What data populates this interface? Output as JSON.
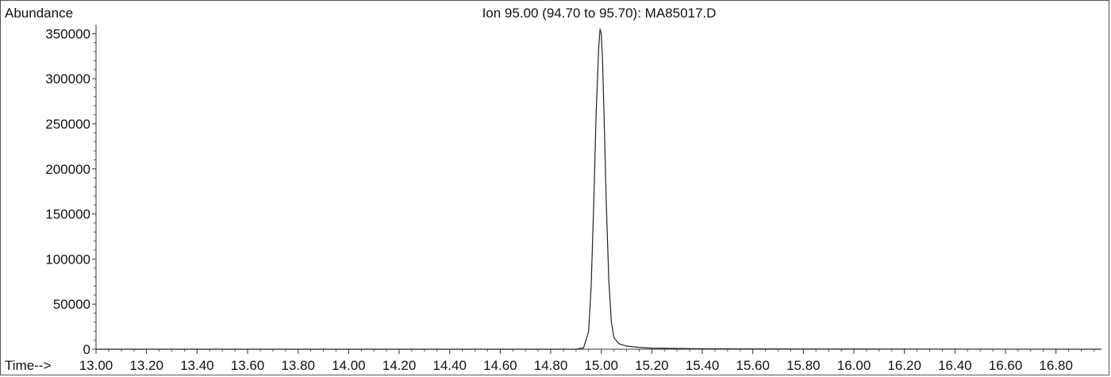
{
  "chart_data": {
    "type": "line",
    "title": "Ion  95.00 (94.70 to 95.70): MA85017.D",
    "ylabel": "Abundance",
    "xlabel_prefix": "Time-->",
    "xlim": [
      13.0,
      16.98
    ],
    "ylim": [
      0,
      360000
    ],
    "xticks": [
      13.0,
      13.2,
      13.4,
      13.6,
      13.8,
      14.0,
      14.2,
      14.4,
      14.6,
      14.8,
      15.0,
      15.2,
      15.4,
      15.6,
      15.8,
      16.0,
      16.2,
      16.4,
      16.6,
      16.8
    ],
    "xtick_labels": [
      "13.00",
      "13.20",
      "13.40",
      "13.60",
      "13.80",
      "14.00",
      "14.20",
      "14.40",
      "14.60",
      "14.80",
      "15.00",
      "15.20",
      "15.40",
      "15.60",
      "15.80",
      "16.00",
      "16.20",
      "16.40",
      "16.60",
      "16.80"
    ],
    "yticks": [
      0,
      50000,
      100000,
      150000,
      200000,
      250000,
      300000,
      350000
    ],
    "ytick_labels": [
      "0",
      "50000",
      "100000",
      "150000",
      "200000",
      "250000",
      "300000",
      "350000"
    ],
    "grid": false,
    "series": [
      {
        "color": "#222222",
        "x": [
          13.0,
          14.9,
          14.93,
          14.95,
          14.96,
          14.97,
          14.98,
          14.99,
          14.995,
          15.0,
          15.005,
          15.01,
          15.02,
          15.03,
          15.04,
          15.05,
          15.07,
          15.1,
          15.15,
          15.2,
          15.4,
          16.0,
          16.98
        ],
        "y": [
          0,
          0,
          1500,
          20000,
          70000,
          160000,
          265000,
          335000,
          355000,
          350000,
          320000,
          270000,
          160000,
          75000,
          30000,
          13000,
          6000,
          3500,
          2000,
          1200,
          500,
          200,
          0
        ]
      }
    ]
  }
}
